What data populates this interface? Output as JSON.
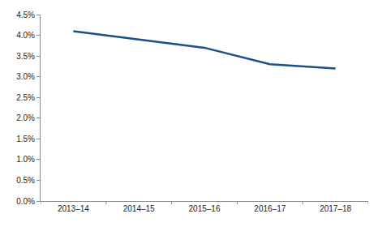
{
  "chart_data": {
    "type": "line",
    "categories": [
      "2013–14",
      "2014–15",
      "2015–16",
      "2016–17",
      "2017–18"
    ],
    "values": [
      4.1,
      3.9,
      3.7,
      3.3,
      3.2
    ],
    "color": "#1a4f8b",
    "ylim": [
      0,
      4.5
    ],
    "yticks": [
      {
        "value": 0,
        "label": "0.0%"
      },
      {
        "value": 0.5,
        "label": "0.5%"
      },
      {
        "value": 1,
        "label": "1.0%"
      },
      {
        "value": 1.5,
        "label": "1.5%"
      },
      {
        "value": 2,
        "label": "2.0%"
      },
      {
        "value": 2.5,
        "label": "2.5%"
      },
      {
        "value": 3,
        "label": "3.0%"
      },
      {
        "value": 3.5,
        "label": "3.5%"
      },
      {
        "value": 4,
        "label": "4.0%"
      },
      {
        "value": 4.5,
        "label": "4.5%"
      }
    ],
    "grid": false
  }
}
